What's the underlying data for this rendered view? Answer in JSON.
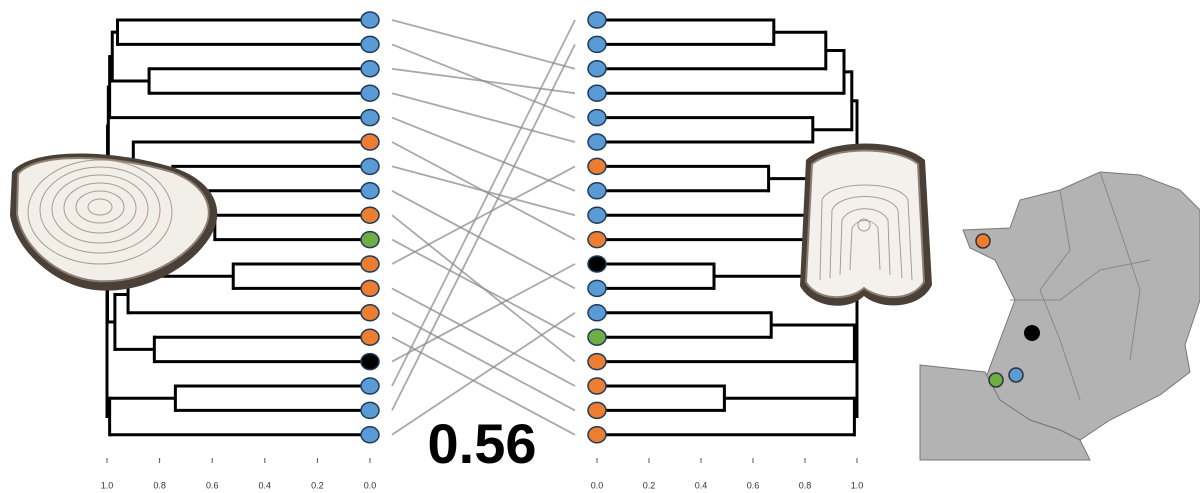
{
  "chart_data": [
    {
      "type": "dendrogram",
      "colors": [
        "#5b9bd5",
        "#5b9bd5",
        "#5b9bd5",
        "#5b9bd5",
        "#5b9bd5",
        "#ed7d31",
        "#5b9bd5",
        "#5b9bd5",
        "#ed7d31",
        "#70ad47",
        "#ed7d31",
        "#ed7d31",
        "#ed7d31",
        "#ed7d31",
        "#000000",
        "#5b9bd5",
        "#5b9bd5",
        "#5b9bd5"
      ],
      "merges": [
        {
          "children": [
            0,
            1
          ],
          "height": 0.96
        },
        {
          "children": [
            2,
            3
          ],
          "height": 0.84
        },
        {
          "children": [
            8,
            9
          ],
          "height": 0.59
        },
        {
          "children": [
            7,
            20
          ],
          "height": 0.7
        },
        {
          "children": [
            6,
            21
          ],
          "height": 0.75
        },
        {
          "children": [
            5,
            22
          ],
          "height": 0.9
        },
        {
          "children": [
            10,
            11
          ],
          "height": 0.52
        },
        {
          "children": [
            24,
            12
          ],
          "height": 0.92
        },
        {
          "children": [
            13,
            14
          ],
          "height": 0.82
        },
        {
          "children": [
            15,
            16
          ],
          "height": 0.74
        },
        {
          "children": [
            25,
            26
          ],
          "height": 0.97
        },
        {
          "children": [
            27,
            17
          ],
          "height": 0.99
        },
        {
          "children": [
            18,
            19
          ],
          "height": 0.98
        },
        {
          "children": [
            30,
            4
          ],
          "height": 0.99
        },
        {
          "children": [
            31,
            23
          ],
          "height": 0.995
        },
        {
          "children": [
            32,
            28
          ],
          "height": 0.998
        },
        {
          "children": [
            33,
            29
          ],
          "height": 1
        }
      ],
      "xlim": [
        1,
        0
      ],
      "xticks": [
        {
          "value": 1,
          "label": "1.0"
        },
        0.8,
        0.6,
        0.4,
        0.2,
        {
          "value": 0,
          "label": "0.0"
        }
      ]
    },
    {
      "type": "dendrogram",
      "colors": [
        "#5b9bd5",
        "#5b9bd5",
        "#5b9bd5",
        "#5b9bd5",
        "#5b9bd5",
        "#5b9bd5",
        "#ed7d31",
        "#5b9bd5",
        "#5b9bd5",
        "#ed7d31",
        "#000000",
        "#5b9bd5",
        "#5b9bd5",
        "#70ad47",
        "#ed7d31",
        "#ed7d31",
        "#ed7d31",
        "#ed7d31"
      ],
      "merges": [
        {
          "children": [
            0,
            1
          ],
          "height": 0.68
        },
        {
          "children": [
            18,
            2
          ],
          "height": 0.88
        },
        {
          "children": [
            19,
            3
          ],
          "height": 0.95
        },
        {
          "children": [
            4,
            5
          ],
          "height": 0.83
        },
        {
          "children": [
            6,
            7
          ],
          "height": 0.66
        },
        {
          "children": [
            22,
            8
          ],
          "height": 0.99
        },
        {
          "children": [
            10,
            11
          ],
          "height": 0.45
        },
        {
          "children": [
            12,
            13
          ],
          "height": 0.67
        },
        {
          "children": [
            25,
            14
          ],
          "height": 0.99
        },
        {
          "children": [
            15,
            16
          ],
          "height": 0.49
        },
        {
          "children": [
            27,
            17
          ],
          "height": 0.99
        },
        {
          "children": [
            26,
            28
          ],
          "height": 1
        },
        {
          "children": [
            24,
            29
          ],
          "height": 1
        },
        {
          "children": [
            20,
            21
          ],
          "height": 0.98
        },
        {
          "children": [
            23,
            9
          ],
          "height": 0.995
        },
        {
          "children": [
            31,
            32
          ],
          "height": 1
        },
        {
          "children": [
            33,
            30
          ],
          "height": 1
        }
      ],
      "xlim": [
        0,
        1
      ],
      "xticks": [
        {
          "value": 0,
          "label": "0.0"
        },
        0.2,
        0.4,
        0.6,
        0.8,
        {
          "value": 1,
          "label": "1.0"
        }
      ]
    }
  ],
  "links": [
    [
      0,
      2
    ],
    [
      1,
      4
    ],
    [
      2,
      3
    ],
    [
      3,
      5
    ],
    [
      4,
      7
    ],
    [
      5,
      9
    ],
    [
      6,
      8
    ],
    [
      7,
      11
    ],
    [
      8,
      14
    ],
    [
      9,
      13
    ],
    [
      10,
      6
    ],
    [
      11,
      15
    ],
    [
      12,
      16
    ],
    [
      13,
      17
    ],
    [
      14,
      10
    ],
    [
      15,
      0
    ],
    [
      16,
      1
    ],
    [
      17,
      12
    ]
  ],
  "statistic": 0.56
}
